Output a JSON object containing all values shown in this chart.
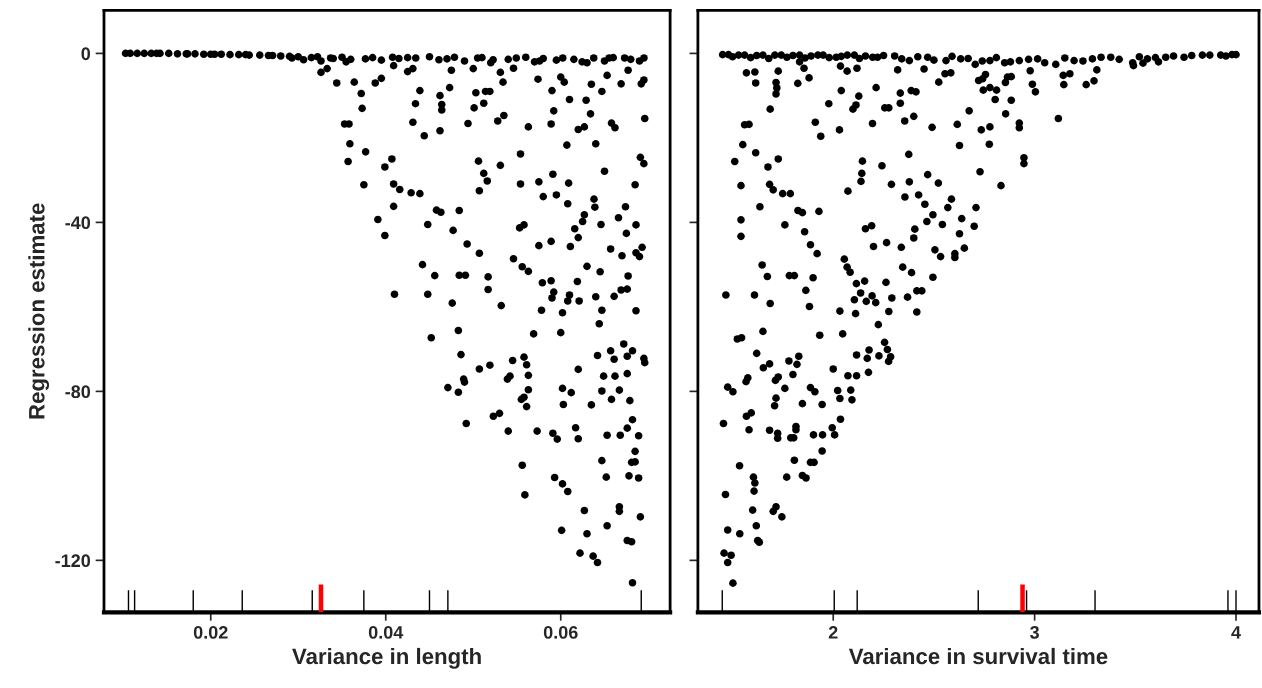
{
  "chart_data": [
    {
      "type": "scatter",
      "xlabel": "Variance in length",
      "ylabel": "Regression estimate",
      "xlim": [
        0.0078,
        0.0725
      ],
      "ylim": [
        -132.3,
        10.2
      ],
      "xticks": [
        0.02,
        0.04,
        0.06
      ],
      "yticks": [
        0,
        -40,
        -80,
        -120
      ],
      "marker": "circle",
      "grid": false,
      "series": [
        {
          "color": "#000000",
          "x": [
            0.01027,
            0.01381,
            0.01735,
            0.02044,
            0.02398,
            0.02707,
            0.02928,
            0.03061,
            0.0326,
            0.0337,
            0.03547,
            0.03768,
            0.04078,
            0.04343,
            0.04608,
            0.04785,
            0.0505,
            0.05227,
            0.05492,
            0.05758,
            0.06023,
            0.06244,
            0.06377,
            0.06553,
            0.0673,
            0.06951,
            0.0326,
            0.0333,
            0.0344,
            0.0364,
            0.0372,
            0.0373,
            0.0353,
            0.0358,
            0.0359,
            0.0357,
            0.0377,
            0.0375,
            0.0388,
            0.0395,
            0.0409,
            0.0399,
            0.0407,
            0.0409,
            0.0416,
            0.0409,
            0.0391,
            0.0399,
            0.0429,
            0.0439,
            0.0425,
            0.0431,
            0.0439,
            0.0434,
            0.0431,
            0.0444,
            0.0462,
            0.0464,
            0.0464,
            0.0462,
            0.0473,
            0.0475,
            0.05,
            0.0503,
            0.0514,
            0.0519,
            0.0512,
            0.0501,
            0.0494,
            0.0528,
            0.0535,
            0.0531,
            0.0534,
            0.0546,
            0.0574,
            0.0563,
            0.059,
            0.0592,
            0.0589,
            0.06,
            0.0604,
            0.061,
            0.0607,
            0.062,
            0.0627,
            0.0629,
            0.0635,
            0.0634,
            0.064,
            0.0647,
            0.0653,
            0.0669,
            0.0677,
            0.0658,
            0.0662,
            0.065,
            0.0696,
            0.0692,
            0.0695,
            0.0691,
            0.0695,
            0.0685,
            0.0506,
            0.0512,
            0.0516,
            0.0507,
            0.0531,
            0.0554,
            0.0554,
            0.0575,
            0.058,
            0.0591,
            0.0595,
            0.0609,
            0.0608,
            0.0638,
            0.0639,
            0.0627,
            0.0625,
            0.0616,
            0.062,
            0.0646,
            0.0666,
            0.0674,
            0.0686,
            0.0675,
            0.0553,
            0.0558,
            0.0575,
            0.0589,
            0.0611,
            0.0657,
            0.067,
            0.0686,
            0.069,
            0.0693,
            0.0448,
            0.0458,
            0.0463,
            0.0484,
            0.0477,
            0.0493,
            0.0507,
            0.0442,
            0.0456,
            0.0484,
            0.0491,
            0.0517,
            0.0517,
            0.0546,
            0.0556,
            0.0563,
            0.0579,
            0.0589,
            0.0592,
            0.059,
            0.061,
            0.0608,
            0.0621,
            0.0619,
            0.063,
            0.0645,
            0.064,
            0.0647,
            0.0644,
            0.0661,
            0.0669,
            0.0676,
            0.0677,
            0.0686,
            0.041,
            0.0448,
            0.0476,
            0.0532,
            0.0578,
            0.0602,
            0.0483,
            0.0452,
            0.0569,
            0.06,
            0.0486,
            0.0507,
            0.0519,
            0.0545,
            0.0558,
            0.0561,
            0.0563,
            0.0539,
            0.0542,
            0.0489,
            0.049,
            0.0471,
            0.0483,
            0.0492,
            0.0523,
            0.053,
            0.054,
            0.0555,
            0.0558,
            0.0561,
            0.0563,
            0.0573,
            0.0591,
            0.0596,
            0.0556,
            0.0559,
            0.0593,
            0.0602,
            0.0608,
            0.0601,
            0.0602,
            0.0612,
            0.0603,
            0.062,
            0.0617,
            0.062,
            0.0627,
            0.063,
            0.0622,
            0.0637,
            0.0642,
            0.0642,
            0.0649,
            0.0647,
            0.0635,
            0.0653,
            0.0647,
            0.0652,
            0.0653,
            0.0657,
            0.0661,
            0.0662,
            0.0667,
            0.0658,
            0.0668,
            0.0672,
            0.0676,
            0.0682,
            0.0676,
            0.0679,
            0.0682,
            0.0676,
            0.0689,
            0.0685,
            0.0681,
            0.0685,
            0.0678,
            0.0689,
            0.0667,
            0.0667,
            0.0691,
            0.0676,
            0.0681,
            0.0682,
            0.0695,
            0.0696
          ],
          "values": [
            0,
            0,
            -0.1,
            -0.2,
            -0.3,
            -0.5,
            -1.1,
            -1.5,
            -1.8,
            -1.1,
            -2.0,
            -1.3,
            -0.9,
            -1.1,
            -1.5,
            -0.9,
            -1.1,
            -1.5,
            -1.1,
            -1.8,
            -1.1,
            -2.0,
            -1.1,
            -1.1,
            -1.1,
            -1.1,
            -4.5,
            -3.6,
            -7.0,
            -6.8,
            -9.5,
            -13.0,
            -16.7,
            -16.7,
            -21.4,
            -25.6,
            -23.3,
            -31.1,
            -7.0,
            -5.9,
            -2.9,
            -26.9,
            -25.0,
            -30.9,
            -32.2,
            -36.2,
            -39.3,
            -43.1,
            -33.0,
            -33.2,
            -4.3,
            -3.6,
            -8.8,
            -11.9,
            -16.3,
            -19.5,
            -10.0,
            -12.1,
            -13.4,
            -18.3,
            -8.1,
            -4.0,
            -3.6,
            -9.3,
            -9.0,
            -9.0,
            -11.8,
            -12.9,
            -16.6,
            -16.0,
            -14.7,
            -4.5,
            -6.8,
            -3.5,
            -6.1,
            -17.4,
            -8.8,
            -13.6,
            -16.7,
            -5.6,
            -6.8,
            -10.9,
            -21.7,
            -18.0,
            -17.4,
            -11.1,
            -7.3,
            -14.3,
            -21.4,
            -9.0,
            -5.2,
            -7.2,
            -4.0,
            -16.5,
            -17.6,
            -27.9,
            -15.4,
            -7.2,
            -6.3,
            -24.6,
            -26.1,
            -31.1,
            -25.5,
            -28.4,
            -30.2,
            -32.5,
            -26.5,
            -23.8,
            -30.9,
            -30.4,
            -33.9,
            -28.6,
            -33.5,
            -30.7,
            -35.6,
            -34.5,
            -36.4,
            -38.2,
            -39.8,
            -41.5,
            -43.6,
            -40.5,
            -38.9,
            -36.3,
            -40.6,
            -42.6,
            -41.3,
            -40.6,
            -45.5,
            -44.5,
            -45.7,
            -46.3,
            -47.9,
            -47.2,
            -48.1,
            -45.9,
            -40.5,
            -37.1,
            -37.6,
            -37.2,
            -41.9,
            -45.1,
            -47.3,
            -50.0,
            -52.6,
            -52.5,
            -52.5,
            -52.9,
            -55.9,
            -48.6,
            -50.5,
            -51.6,
            -54.3,
            -53.8,
            -56.5,
            -57.9,
            -57.2,
            -58.6,
            -58.6,
            -54.0,
            -50.4,
            -51.7,
            -57.6,
            -60.8,
            -64.0,
            -57.5,
            -56.0,
            -55.8,
            -52.7,
            -60.9,
            -57.0,
            -57.0,
            -59.1,
            -59.7,
            -60.8,
            -61.4,
            -65.6,
            -67.3,
            -66.4,
            -66.1,
            -71.3,
            -74.7,
            -73.8,
            -72.7,
            -71.9,
            -73.7,
            -76.2,
            -77.1,
            -76.4,
            -77.1,
            -77.8,
            -79.1,
            -80.2,
            -87.6,
            -85.9,
            -85.2,
            -89.4,
            -81.9,
            -81.4,
            -83.6,
            -79.6,
            -89.4,
            -89.9,
            -91.3,
            -97.5,
            -104.5,
            -100.4,
            -101.9,
            -103.7,
            -112.9,
            -79.3,
            -80.3,
            -83.1,
            -74.8,
            -88.6,
            -91.2,
            -108.2,
            -113.7,
            -118.3,
            -119.0,
            -120.5,
            -71.5,
            -76.4,
            -79.9,
            -83.2,
            -90.4,
            -96.4,
            -100.3,
            -111.8,
            -70.4,
            -72.4,
            -76.4,
            -79.7,
            -81.9,
            -90.4,
            -68.8,
            -71.7,
            -70.4,
            -75.8,
            -82.2,
            -86.7,
            -88.7,
            -90.5,
            -94.2,
            -96.8,
            -96.7,
            -100.0,
            -100.5,
            -107.3,
            -108.4,
            -109.7,
            -115.3,
            -115.6,
            -125.3,
            -72.2,
            -73.2
          ]
        },
        {
          "color": "#000000",
          "x": [
            0.0108,
            0.0116,
            0.0124,
            0.0132,
            0.0142,
            0.0152,
            0.0162,
            0.0172,
            0.0182,
            0.0192,
            0.02,
            0.0212,
            0.0222,
            0.0232,
            0.0244,
            0.0256,
            0.0266,
            0.028,
            0.029,
            0.03,
            0.0315,
            0.0322,
            0.034,
            0.035,
            0.036,
            0.0385,
            0.0395,
            0.0415,
            0.0425,
            0.045,
            0.047,
            0.049,
            0.051,
            0.052,
            0.054,
            0.056,
            0.057,
            0.058,
            0.0595,
            0.0615,
            0.063,
            0.065,
            0.066,
            0.068,
            0.069
          ],
          "values": [
            0,
            0,
            0,
            0,
            0,
            0,
            -0.1,
            -0.1,
            -0.1,
            -0.2,
            -0.2,
            -0.2,
            -0.3,
            -0.3,
            -0.4,
            -0.4,
            -0.5,
            -0.6,
            -0.7,
            -0.8,
            -1.0,
            -0.8,
            -1.2,
            -0.9,
            -1.4,
            -1.0,
            -1.6,
            -1.2,
            -1.0,
            -0.8,
            -1.3,
            -1.8,
            -1.0,
            -2.2,
            -1.4,
            -0.9,
            -2.0,
            -1.2,
            -1.6,
            -1.4,
            -2.2,
            -1.8,
            -1.0,
            -1.4,
            -1.8
          ]
        },
        {
          "type": "bar",
          "color": "#000000",
          "x": [
            0.0106,
            0.0113,
            0.018,
            0.0236,
            0.0316,
            0.0375,
            0.045,
            0.0471,
            0.0692
          ],
          "base": [
            -132.3,
            -132.3,
            -132.3,
            -132.3,
            -132.3,
            -132.3,
            -132.3,
            -132.3,
            -132.3
          ],
          "values": [
            5.2,
            5.2,
            5.2,
            5.2,
            5.2,
            5.2,
            5.2,
            5.2,
            5.2
          ]
        },
        {
          "type": "bar",
          "color": "#ff0000",
          "x": [
            0.0326
          ],
          "base": [
            -132.3
          ],
          "values": [
            6.6
          ]
        }
      ]
    },
    {
      "type": "scatter",
      "xlabel": "Variance in survival time",
      "xlim": [
        1.328,
        4.114
      ],
      "ylim": [
        -132.3,
        10.2
      ],
      "xticks": [
        2,
        3,
        4
      ],
      "yticks": [
        0,
        -40,
        -80,
        -120
      ],
      "tick_labels": "x",
      "marker": "circle",
      "grid": false,
      "series": [
        {
          "color": "#000000",
          "x": [
            1.451,
            1.56,
            1.651,
            1.742,
            1.833,
            1.924,
            2.015,
            2.105,
            2.196,
            2.305,
            2.378,
            2.469,
            2.56,
            2.633,
            2.705,
            2.778,
            2.851,
            2.924,
            3.015,
            3.105,
            3.196,
            3.287,
            3.378,
            3.487,
            3.56,
            3.651,
            3.742,
            3.833,
            3.924,
            4.0,
            1.569,
            1.611,
            1.615,
            1.727,
            1.716,
            1.72,
            1.716,
            1.687,
            1.824,
            1.88,
            1.833,
            1.855,
            1.56,
            1.582,
            1.551,
            1.615,
            1.511,
            1.676,
            1.727,
            1.542,
            1.684,
            1.702,
            1.749,
            1.787,
            1.636,
            1.542,
            1.542,
            1.76,
            1.825,
            1.847,
            1.929,
            1.978,
            1.911,
            1.938,
            2.031,
            2.04,
            2.036,
            2.069,
            2.118,
            2.127,
            2.113,
            2.098,
            2.195,
            2.213,
            2.256,
            2.276,
            2.333,
            2.333,
            2.32,
            2.387,
            2.411,
            2.355,
            2.4,
            2.451,
            2.491,
            2.524,
            2.555,
            2.584,
            2.616,
            2.627,
            2.675,
            2.722,
            2.742,
            2.756,
            2.745,
            2.778,
            2.811,
            2.804,
            2.884,
            2.856,
            2.855,
            2.865,
            2.884,
            2.735,
            2.778,
            2.775,
            2.924,
            2.924,
            2.947,
            2.947,
            2.989,
            3.004,
            2.978,
            3.118,
            3.145,
            3.142,
            3.175,
            3.256,
            3.295,
            3.309,
            3.491,
            3.538,
            3.615,
            2.729,
            2.833,
            2.375,
            2.242,
            2.289,
            2.145,
            2.142,
            2.138,
            2.073,
            2.378,
            2.356,
            2.424,
            2.469,
            2.522,
            2.455,
            2.495,
            2.465,
            2.542,
            2.587,
            2.569,
            2.638,
            2.709,
            2.7,
            2.627,
            2.651,
            2.604,
            2.604,
            2.505,
            2.533,
            2.495,
            2.405,
            2.4,
            2.338,
            2.265,
            2.2,
            2.16,
            2.191,
            2.345,
            2.389,
            2.415,
            2.44,
            2.369,
            2.415,
            2.291,
            2.276,
            2.262,
            2.224,
            2.193,
            2.211,
            2.164,
            2.136,
            2.105,
            2.156,
            2.115,
            2.084,
            2.069,
            2.055,
            2.111,
            2.033,
            2.047,
            1.933,
            1.92,
            1.887,
            1.858,
            1.9,
            1.864,
            1.882,
            1.782,
            1.807,
            1.673,
            1.647,
            1.687,
            1.609,
            1.467,
            1.651,
            1.524,
            1.545,
            2.255,
            2.269,
            2.285,
            2.275,
            2.227,
            2.178,
            2.169,
            2.116,
            2.175,
            2.116,
            2.073,
            2.0,
            2.087,
            2.093,
            2.022,
            2.033,
            2.036,
            1.995,
            2.007,
            1.947,
            1.902,
            1.945,
            1.905,
            1.887,
            1.887,
            1.909,
            1.945,
            1.847,
            1.829,
            1.82,
            1.78,
            1.8,
            1.76,
            1.727,
            1.713,
            1.684,
            1.653,
            1.62,
            1.567,
            1.576,
            1.476,
            1.502,
            1.455,
            1.569,
            1.593,
            1.582,
            1.684,
            1.716,
            1.709,
            1.724,
            1.724,
            1.789,
            1.804,
            1.815,
            1.815,
            1.807,
            1.535,
            1.604,
            1.611,
            1.607,
            1.769,
            1.847,
            1.865,
            1.465,
            1.6,
            1.716,
            1.702,
            1.745,
            1.618,
            1.625,
            1.633,
            1.476,
            1.536,
            1.458,
            1.493,
            1.476,
            1.502
          ],
          "values": [
            -0.3,
            -0.4,
            -0.4,
            -0.4,
            -0.4,
            -0.4,
            -0.9,
            -0.4,
            -0.9,
            -0.6,
            -1.7,
            -0.9,
            -1.7,
            -1.3,
            -2.6,
            -1.7,
            -2.2,
            -1.7,
            -1.3,
            -2.6,
            -1.7,
            -1.3,
            -0.9,
            -2.2,
            -1.3,
            -0.9,
            -0.9,
            -0.4,
            -0.4,
            -0.3,
            -4.6,
            -4.4,
            -7.0,
            -4.2,
            -6.9,
            -8.2,
            -9.6,
            -13.2,
            -7.1,
            -5.8,
            -2.0,
            -3.5,
            -16.9,
            -16.8,
            -21.6,
            -23.5,
            -25.6,
            -26.9,
            -25.0,
            -31.3,
            -31.0,
            -32.3,
            -33.2,
            -33.2,
            -36.3,
            -39.4,
            -43.3,
            -40.6,
            -37.2,
            -37.7,
            -37.4,
            -11.9,
            -16.3,
            -19.6,
            -18.1,
            -8.8,
            -3.0,
            -4.2,
            -3.5,
            -10.1,
            -12.2,
            -13.2,
            -16.6,
            -8.1,
            -12.9,
            -12.9,
            -9.4,
            -11.8,
            -3.9,
            -8.8,
            -9.1,
            -16.0,
            -14.9,
            -3.7,
            -17.5,
            -6.8,
            -4.8,
            -4.6,
            -16.8,
            -21.8,
            -13.6,
            -6.4,
            -6.0,
            -5.0,
            -8.7,
            -8.1,
            -8.7,
            -10.9,
            -11.1,
            -14.3,
            -6.9,
            -5.6,
            -5.5,
            -18.1,
            -17.4,
            -21.5,
            -16.5,
            -17.6,
            -24.7,
            -26.1,
            -7.3,
            -9.1,
            -4.1,
            -15.4,
            -7.4,
            -5.2,
            -4.8,
            -7.4,
            -6.5,
            -3.9,
            -2.9,
            -2.3,
            -2.0,
            -28.0,
            -31.3,
            -23.9,
            -26.6,
            -31.0,
            -25.5,
            -28.4,
            -30.3,
            -32.6,
            -30.4,
            -34.0,
            -33.5,
            -28.7,
            -30.7,
            -35.7,
            -38.2,
            -39.8,
            -40.5,
            -34.5,
            -36.5,
            -39.1,
            -36.5,
            -40.9,
            -42.7,
            -46.1,
            -47.4,
            -48.3,
            -46.5,
            -48.1,
            -53.0,
            -41.6,
            -43.7,
            -45.9,
            -44.8,
            -45.7,
            -41.5,
            -40.8,
            -50.6,
            -51.9,
            -56.2,
            -56.2,
            -57.7,
            -61.2,
            -57.9,
            -61.1,
            -54.2,
            -64.2,
            -57.4,
            -59.0,
            -58.7,
            -56.7,
            -58.3,
            -53.9,
            -54.5,
            -51.8,
            -50.6,
            -48.7,
            -61.6,
            -61.0,
            -66.4,
            -66.7,
            -47.4,
            -45.3,
            -42.2,
            -53.1,
            -56.1,
            -59.9,
            -52.6,
            -52.6,
            -52.8,
            -50.1,
            -59.2,
            -57.2,
            -57.2,
            -65.8,
            -67.6,
            -67.3,
            -68.4,
            -70.1,
            -71.8,
            -72.9,
            -71.6,
            -70.2,
            -72.2,
            -71.4,
            -75.5,
            -76.3,
            -76.3,
            -74.7,
            -79.7,
            -82.0,
            -79.8,
            -81.7,
            -86.6,
            -88.6,
            -90.3,
            -90.3,
            -90.3,
            -94.1,
            -96.8,
            -96.8,
            -79.1,
            -80.1,
            -83.1,
            -82.9,
            -71.7,
            -73.6,
            -72.8,
            -76.0,
            -79.3,
            -76.6,
            -77.4,
            -73.5,
            -74.4,
            -71.0,
            -77.7,
            -76.8,
            -79.0,
            -80.1,
            -87.6,
            -85.9,
            -85.1,
            -89.1,
            -89.2,
            -81.6,
            -83.4,
            -89.9,
            -91.1,
            -91.0,
            -91.0,
            -88.3,
            -89.1,
            -96.3,
            -97.6,
            -100.3,
            -101.7,
            -103.6,
            -100.3,
            -99.9,
            -100.5,
            -104.4,
            -108.1,
            -107.3,
            -108.4,
            -109.7,
            -111.8,
            -115.3,
            -115.7,
            -112.8,
            -113.7,
            -118.3,
            -118.8,
            -120.5,
            -125.4
          ]
        },
        {
          "color": "#000000",
          "x": [
            1.48,
            1.5,
            1.53,
            1.59,
            1.62,
            1.68,
            1.71,
            1.77,
            1.8,
            1.86,
            1.89,
            1.95,
            1.98,
            2.04,
            2.07,
            2.13,
            2.16,
            2.22,
            2.25,
            2.34,
            2.42,
            2.5,
            2.59,
            2.67,
            2.74,
            2.81,
            2.88,
            2.97,
            3.05,
            3.15,
            3.24,
            3.33,
            3.42,
            3.52,
            3.6,
            3.69,
            3.78,
            3.87,
            3.95,
            3.98
          ],
          "values": [
            -0.3,
            -0.8,
            -0.4,
            -1.0,
            -0.5,
            -1.2,
            -0.4,
            -0.9,
            -0.5,
            -1.1,
            -0.6,
            -0.4,
            -1.0,
            -0.7,
            -0.4,
            -1.2,
            -0.6,
            -0.9,
            -0.5,
            -1.3,
            -0.8,
            -1.6,
            -0.7,
            -1.2,
            -1.8,
            -1.0,
            -2.0,
            -1.4,
            -2.2,
            -1.1,
            -1.8,
            -0.9,
            -1.4,
            -0.8,
            -1.0,
            -0.6,
            -0.5,
            -0.4,
            -0.6,
            -0.3
          ]
        },
        {
          "type": "bar",
          "color": "#000000",
          "x": [
            1.449,
            2.005,
            2.119,
            2.72,
            2.96,
            3.3,
            3.96,
            4.0
          ],
          "base": [
            -132.3,
            -132.3,
            -132.3,
            -132.3,
            -132.3,
            -132.3,
            -132.3,
            -132.3
          ],
          "values": [
            5.2,
            5.2,
            5.2,
            5.2,
            5.2,
            5.2,
            5.2,
            5.2
          ]
        },
        {
          "type": "bar",
          "color": "#ff0000",
          "x": [
            2.94
          ],
          "base": [
            -132.3
          ],
          "values": [
            6.6
          ]
        }
      ]
    }
  ]
}
